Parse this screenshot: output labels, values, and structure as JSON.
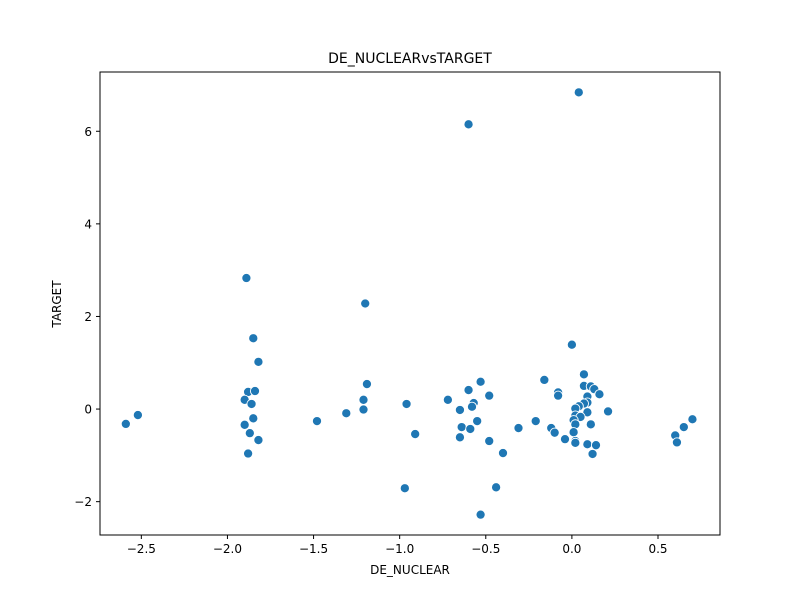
{
  "chart_data": {
    "type": "scatter",
    "title": "DE_NUCLEARvsTARGET",
    "xlabel": "DE_NUCLEAR",
    "ylabel": "TARGET",
    "xlim": [
      -2.74,
      0.86
    ],
    "ylim": [
      -2.72,
      7.28
    ],
    "xticks": [
      -2.5,
      -2.0,
      -1.5,
      -1.0,
      -0.5,
      0.0,
      0.5
    ],
    "xtick_labels": [
      "−2.5",
      "−2.0",
      "−1.5",
      "−1.0",
      "−0.5",
      "0.0",
      "0.5"
    ],
    "yticks": [
      -2,
      0,
      2,
      4,
      6
    ],
    "ytick_labels": [
      "−2",
      "0",
      "2",
      "4",
      "6"
    ],
    "grid": false,
    "marker_color": "#1f77b4",
    "marker_edge_color": "#ffffff",
    "points": [
      {
        "x": -2.59,
        "y": -0.32
      },
      {
        "x": -2.52,
        "y": -0.13
      },
      {
        "x": -1.89,
        "y": 2.83
      },
      {
        "x": -1.85,
        "y": 1.53
      },
      {
        "x": -1.82,
        "y": 1.02
      },
      {
        "x": -1.88,
        "y": 0.37
      },
      {
        "x": -1.84,
        "y": 0.39
      },
      {
        "x": -1.9,
        "y": 0.2
      },
      {
        "x": -1.86,
        "y": 0.11
      },
      {
        "x": -1.85,
        "y": -0.2
      },
      {
        "x": -1.9,
        "y": -0.34
      },
      {
        "x": -1.87,
        "y": -0.52
      },
      {
        "x": -1.82,
        "y": -0.67
      },
      {
        "x": -1.88,
        "y": -0.96
      },
      {
        "x": -1.48,
        "y": -0.26
      },
      {
        "x": -1.31,
        "y": -0.09
      },
      {
        "x": -1.2,
        "y": 2.28
      },
      {
        "x": -1.19,
        "y": 0.54
      },
      {
        "x": -1.21,
        "y": 0.2
      },
      {
        "x": -1.21,
        "y": -0.01
      },
      {
        "x": -0.96,
        "y": 0.11
      },
      {
        "x": -0.91,
        "y": -0.54
      },
      {
        "x": -0.97,
        "y": -1.71
      },
      {
        "x": -0.72,
        "y": 0.2
      },
      {
        "x": -0.6,
        "y": 6.15
      },
      {
        "x": -0.6,
        "y": 0.41
      },
      {
        "x": -0.53,
        "y": 0.59
      },
      {
        "x": -0.48,
        "y": 0.29
      },
      {
        "x": -0.57,
        "y": 0.13
      },
      {
        "x": -0.58,
        "y": 0.05
      },
      {
        "x": -0.65,
        "y": -0.02
      },
      {
        "x": -0.55,
        "y": -0.26
      },
      {
        "x": -0.64,
        "y": -0.39
      },
      {
        "x": -0.59,
        "y": -0.43
      },
      {
        "x": -0.65,
        "y": -0.61
      },
      {
        "x": -0.48,
        "y": -0.69
      },
      {
        "x": -0.4,
        "y": -0.95
      },
      {
        "x": -0.44,
        "y": -1.69
      },
      {
        "x": -0.53,
        "y": -2.28
      },
      {
        "x": -0.31,
        "y": -0.41
      },
      {
        "x": -0.21,
        "y": -0.26
      },
      {
        "x": -0.16,
        "y": 0.63
      },
      {
        "x": -0.08,
        "y": 0.36
      },
      {
        "x": -0.08,
        "y": 0.29
      },
      {
        "x": -0.12,
        "y": -0.41
      },
      {
        "x": -0.1,
        "y": -0.51
      },
      {
        "x": -0.04,
        "y": -0.65
      },
      {
        "x": 0.0,
        "y": 1.39
      },
      {
        "x": 0.04,
        "y": 6.84
      },
      {
        "x": 0.07,
        "y": 0.75
      },
      {
        "x": 0.07,
        "y": 0.5
      },
      {
        "x": 0.11,
        "y": 0.49
      },
      {
        "x": 0.13,
        "y": 0.43
      },
      {
        "x": 0.16,
        "y": 0.32
      },
      {
        "x": 0.09,
        "y": 0.27
      },
      {
        "x": 0.09,
        "y": 0.14
      },
      {
        "x": 0.07,
        "y": 0.12
      },
      {
        "x": 0.04,
        "y": 0.06
      },
      {
        "x": 0.02,
        "y": 0.01
      },
      {
        "x": 0.09,
        "y": -0.07
      },
      {
        "x": 0.02,
        "y": -0.14
      },
      {
        "x": 0.05,
        "y": -0.17
      },
      {
        "x": 0.01,
        "y": -0.24
      },
      {
        "x": 0.02,
        "y": -0.33
      },
      {
        "x": 0.11,
        "y": -0.33
      },
      {
        "x": 0.01,
        "y": -0.5
      },
      {
        "x": 0.02,
        "y": -0.69
      },
      {
        "x": 0.02,
        "y": -0.73
      },
      {
        "x": 0.09,
        "y": -0.76
      },
      {
        "x": 0.14,
        "y": -0.78
      },
      {
        "x": 0.12,
        "y": -0.97
      },
      {
        "x": 0.21,
        "y": -0.05
      },
      {
        "x": 0.6,
        "y": -0.57
      },
      {
        "x": 0.61,
        "y": -0.72
      },
      {
        "x": 0.65,
        "y": -0.39
      },
      {
        "x": 0.7,
        "y": -0.22
      }
    ]
  }
}
